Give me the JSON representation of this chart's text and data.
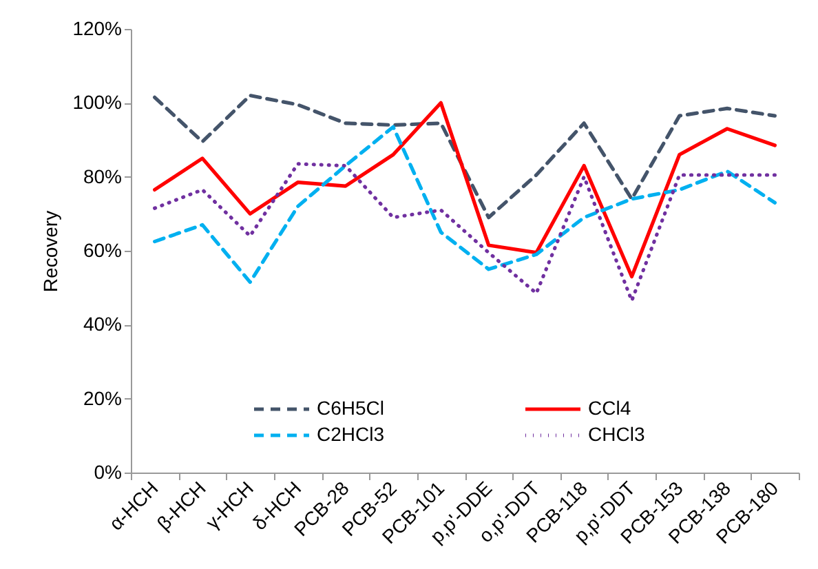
{
  "chart_data": {
    "type": "line",
    "ylabel": "Recovery",
    "categories": [
      "α-HCH",
      "β-HCH",
      "γ-HCH",
      "δ-HCH",
      "PCB-28",
      "PCB-52",
      "PCB-101",
      "p,p'-DDE",
      "o,p'-DDT",
      "PCB-118",
      "p,p'-DDT",
      "PCB-153",
      "PCB-138",
      "PCB-180"
    ],
    "series": [
      {
        "name": "C6H5Cl",
        "color": "#44546a",
        "line_style": "dashed",
        "values": [
          101.5,
          89.5,
          102,
          99.5,
          94.5,
          94,
          94.5,
          69,
          80.5,
          94.5,
          74,
          96.5,
          98.5,
          96.5
        ]
      },
      {
        "name": "CCl4",
        "color": "#ff0000",
        "line_style": "solid",
        "values": [
          76.5,
          85,
          70,
          78.5,
          77.5,
          86,
          100,
          61.5,
          59.5,
          83,
          53,
          86,
          93,
          88.5
        ]
      },
      {
        "name": "C2HCl3",
        "color": "#00b0f0",
        "line_style": "dashed",
        "values": [
          62.5,
          67,
          51.5,
          72,
          83,
          93.5,
          65,
          55,
          59,
          69,
          74,
          76.5,
          81.5,
          73
        ]
      },
      {
        "name": "CHCl3",
        "color": "#7030a0",
        "line_style": "dotted",
        "values": [
          71.5,
          76.5,
          64,
          83.5,
          83,
          69,
          71,
          59.5,
          48.5,
          80,
          46.5,
          80.5,
          80.5,
          80.5
        ]
      }
    ],
    "ylim": [
      0,
      120
    ],
    "yticks": [
      {
        "value": 0,
        "label": "0%"
      },
      {
        "value": 20,
        "label": "20%"
      },
      {
        "value": 40,
        "label": "40%"
      },
      {
        "value": 60,
        "label": "60%"
      },
      {
        "value": 80,
        "label": "80%"
      },
      {
        "value": 100,
        "label": "100%"
      },
      {
        "value": 120,
        "label": "120%"
      }
    ],
    "legend": "bottom",
    "grid": false,
    "marker": "none"
  }
}
